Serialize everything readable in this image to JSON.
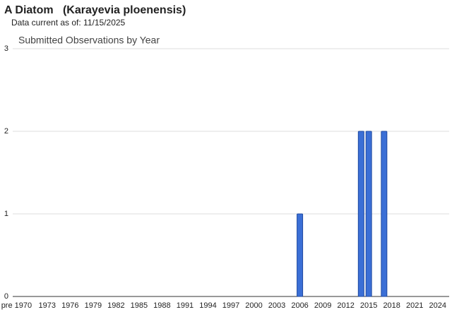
{
  "title": "A Diatom   (Karayevia ploenensis)",
  "subtitle": "Data current as of: 11/15/2025",
  "chart_data": {
    "type": "bar",
    "title": "Submitted Observations by Year",
    "categories": [
      "pre 1970",
      null,
      null,
      null,
      "1973",
      null,
      null,
      "1976",
      null,
      null,
      "1979",
      null,
      null,
      "1982",
      null,
      null,
      "1985",
      null,
      null,
      "1988",
      null,
      null,
      "1991",
      null,
      null,
      "1994",
      null,
      null,
      "1997",
      null,
      null,
      "2000",
      null,
      null,
      "2003",
      null,
      null,
      "2006",
      null,
      null,
      "2009",
      null,
      null,
      "2012",
      null,
      null,
      "2015",
      null,
      null,
      "2018",
      null,
      null,
      "2021",
      null,
      null,
      "2024",
      null
    ],
    "values": [
      0,
      0,
      0,
      0,
      0,
      0,
      0,
      0,
      0,
      0,
      0,
      0,
      0,
      0,
      0,
      0,
      0,
      0,
      0,
      0,
      0,
      0,
      0,
      0,
      0,
      0,
      0,
      0,
      0,
      0,
      0,
      0,
      0,
      0,
      0,
      0,
      0,
      1,
      0,
      0,
      0,
      0,
      0,
      0,
      0,
      2,
      2,
      0,
      2,
      0,
      0,
      0,
      0,
      0,
      0,
      0,
      0
    ],
    "color": "#3b6fd6",
    "ylim": [
      0,
      3
    ],
    "yticks": [
      0,
      1,
      2,
      3
    ],
    "grid": true
  }
}
